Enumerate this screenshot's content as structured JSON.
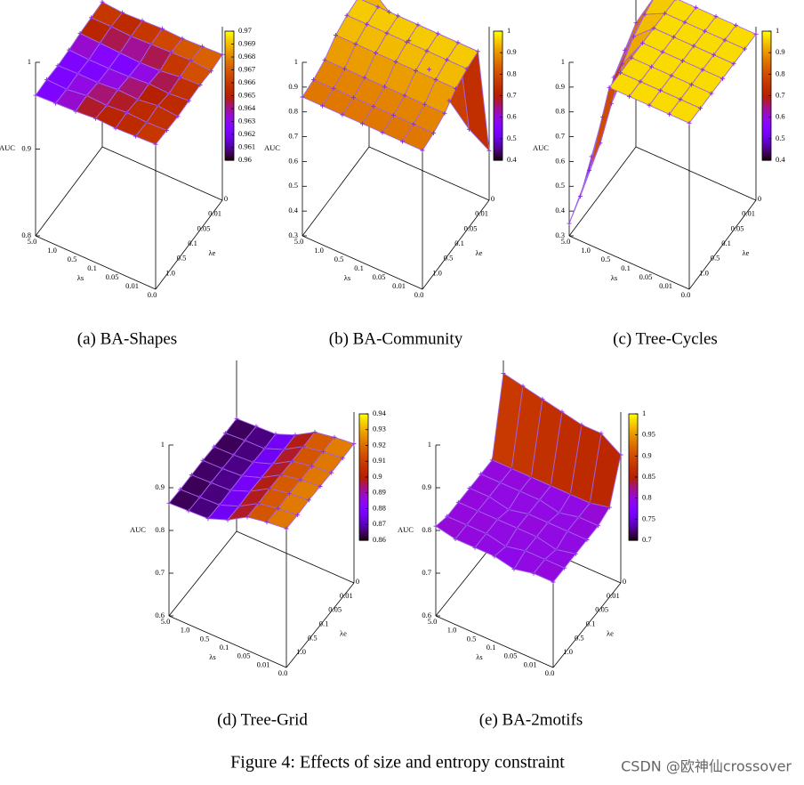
{
  "chart_data": [
    {
      "type": "surface",
      "caption": "(a) BA-Shapes",
      "zlabel": "AUC",
      "xlabel": "λs",
      "ylabel": "λe",
      "xcategories": [
        "5.0",
        "1.0",
        "0.5",
        "0.1",
        "0.05",
        "0.01",
        "0.0"
      ],
      "ycategories": [
        null,
        "1.0",
        "0.5",
        "0.1",
        "0.05",
        "0.01",
        "0"
      ],
      "z": [
        [
          0.962,
          0.963,
          0.962,
          0.963,
          0.965,
          0.966,
          0.967
        ],
        [
          0.963,
          0.962,
          0.963,
          0.962,
          0.964,
          0.966,
          0.965
        ],
        [
          0.964,
          0.965,
          0.963,
          0.962,
          0.963,
          0.965,
          0.966
        ],
        [
          0.966,
          0.964,
          0.965,
          0.963,
          0.962,
          0.966,
          0.967
        ],
        [
          0.965,
          0.966,
          0.964,
          0.965,
          0.963,
          0.967,
          0.966
        ],
        [
          0.966,
          0.965,
          0.967,
          0.964,
          0.966,
          0.968,
          0.967
        ],
        [
          0.967,
          0.966,
          0.965,
          0.966,
          0.967,
          0.966,
          0.968
        ]
      ],
      "zlim": [
        0.8,
        1
      ],
      "zticks": [
        0.8,
        0.9,
        1
      ],
      "cblim": [
        0.96,
        0.97
      ],
      "cbticks": [
        0.96,
        0.961,
        0.962,
        0.963,
        0.964,
        0.965,
        0.966,
        0.967,
        0.968,
        0.969,
        0.97
      ],
      "colormap": "gnuplot",
      "line_color": "#a064e6"
    },
    {
      "type": "surface",
      "caption": "(b) BA-Community",
      "zlabel": "AUC",
      "xlabel": "λs",
      "ylabel": "λe",
      "xcategories": [
        "5.0",
        "1.0",
        "0.5",
        "0.1",
        "0.05",
        "0.01",
        "0.0"
      ],
      "ycategories": [
        null,
        "1.0",
        "0.5",
        "0.1",
        "0.05",
        "0.01",
        "0"
      ],
      "z": [
        [
          0.86,
          0.87,
          0.89,
          0.93,
          0.95,
          0.96,
          0.95
        ],
        [
          0.86,
          0.87,
          0.89,
          0.93,
          0.95,
          0.96,
          0.88
        ],
        [
          0.86,
          0.87,
          0.89,
          0.93,
          0.95,
          0.96,
          0.8
        ],
        [
          0.86,
          0.87,
          0.89,
          0.93,
          0.95,
          0.96,
          0.72
        ],
        [
          0.86,
          0.87,
          0.89,
          0.93,
          0.95,
          0.96,
          0.63
        ],
        [
          0.86,
          0.87,
          0.89,
          0.93,
          0.95,
          0.96,
          0.55
        ],
        [
          0.86,
          0.87,
          0.89,
          0.93,
          0.95,
          0.96,
          0.5
        ]
      ],
      "zlim": [
        0.3,
        1
      ],
      "zticks": [
        0.3,
        0.4,
        0.5,
        0.6,
        0.7,
        0.8,
        0.9,
        1
      ],
      "cblim": [
        0.4,
        1
      ],
      "cbticks": [
        0.4,
        0.5,
        0.6,
        0.7,
        0.8,
        0.9,
        1
      ],
      "colormap": "gnuplot",
      "line_color": "#a064e6"
    },
    {
      "type": "surface",
      "caption": "(c) Tree-Cycles",
      "zlabel": "AUC",
      "xlabel": "λs",
      "ylabel": "λe",
      "xcategories": [
        "5.0",
        "1.0",
        "0.5",
        "0.1",
        "0.05",
        "0.01",
        "0.0"
      ],
      "ycategories": [
        null,
        "1.0",
        "0.5",
        "0.1",
        "0.05",
        "0.01",
        "0"
      ],
      "z": [
        [
          0.35,
          0.4,
          0.5,
          0.6,
          0.7,
          0.75,
          0.8
        ],
        [
          0.6,
          0.65,
          0.75,
          0.85,
          0.9,
          0.93,
          0.95
        ],
        [
          0.97,
          0.97,
          0.97,
          0.97,
          0.97,
          0.97,
          0.97
        ],
        [
          0.97,
          0.97,
          0.97,
          0.97,
          0.97,
          0.97,
          0.97
        ],
        [
          0.97,
          0.97,
          0.97,
          0.97,
          0.97,
          0.97,
          0.97
        ],
        [
          0.97,
          0.97,
          0.97,
          0.97,
          0.97,
          0.97,
          0.97
        ],
        [
          0.97,
          0.97,
          0.97,
          0.97,
          0.97,
          0.97,
          0.97
        ]
      ],
      "zlim": [
        0.3,
        1
      ],
      "zticks": [
        0.3,
        0.4,
        0.5,
        0.6,
        0.7,
        0.8,
        0.9,
        1
      ],
      "cblim": [
        0.4,
        1
      ],
      "cbticks": [
        0.4,
        0.5,
        0.6,
        0.7,
        0.8,
        0.9,
        1
      ],
      "colormap": "gnuplot",
      "line_color": "#a064e6"
    },
    {
      "type": "surface",
      "caption": "(d) Tree-Grid",
      "zlabel": "AUC",
      "xlabel": "λs",
      "ylabel": "λe",
      "xcategories": [
        "5.0",
        "1.0",
        "0.5",
        "0.1",
        "0.05",
        "0.01",
        "0.0"
      ],
      "ycategories": [
        null,
        "1.0",
        "0.5",
        "0.1",
        "0.05",
        "0.01",
        "0"
      ],
      "z": [
        [
          0.864,
          0.863,
          0.864,
          0.865,
          0.864,
          0.863,
          0.864
        ],
        [
          0.866,
          0.865,
          0.866,
          0.866,
          0.865,
          0.866,
          0.866
        ],
        [
          0.868,
          0.867,
          0.868,
          0.869,
          0.868,
          0.867,
          0.868
        ],
        [
          0.885,
          0.884,
          0.886,
          0.885,
          0.884,
          0.885,
          0.886
        ],
        [
          0.912,
          0.911,
          0.913,
          0.912,
          0.911,
          0.912,
          0.913
        ],
        [
          0.92,
          0.919,
          0.921,
          0.92,
          0.919,
          0.92,
          0.921
        ],
        [
          0.925,
          0.924,
          0.926,
          0.925,
          0.924,
          0.925,
          0.926
        ]
      ],
      "zlim": [
        0.6,
        1
      ],
      "zticks": [
        0.6,
        0.7,
        0.8,
        0.9,
        1
      ],
      "cblim": [
        0.86,
        0.94
      ],
      "cbticks": [
        0.86,
        0.87,
        0.88,
        0.89,
        0.9,
        0.91,
        0.92,
        0.93,
        0.94
      ],
      "colormap": "gnuplot",
      "line_color": "#a064e6"
    },
    {
      "type": "surface",
      "caption": "(e) BA-2motifs",
      "zlabel": "AUC",
      "xlabel": "λs",
      "ylabel": "λe",
      "xcategories": [
        "5.0",
        "1.0",
        "0.5",
        "0.1",
        "0.05",
        "0.01",
        "0.0"
      ],
      "ycategories": [
        null,
        "1.0",
        "0.5",
        "0.1",
        "0.05",
        "0.01",
        "0"
      ],
      "z": [
        [
          0.81,
          0.8,
          0.8,
          0.8,
          0.8,
          0.8,
          0.97
        ],
        [
          0.8,
          0.8,
          0.8,
          0.8,
          0.8,
          0.8,
          0.96
        ],
        [
          0.8,
          0.8,
          0.8,
          0.79,
          0.8,
          0.8,
          0.95
        ],
        [
          0.8,
          0.79,
          0.8,
          0.8,
          0.8,
          0.8,
          0.94
        ],
        [
          0.79,
          0.8,
          0.8,
          0.8,
          0.79,
          0.8,
          0.93
        ],
        [
          0.8,
          0.8,
          0.79,
          0.8,
          0.8,
          0.8,
          0.93
        ],
        [
          0.8,
          0.8,
          0.8,
          0.8,
          0.8,
          0.81,
          0.9
        ]
      ],
      "zlim": [
        0.6,
        1
      ],
      "zticks": [
        0.6,
        0.7,
        0.8,
        0.9,
        1
      ],
      "cblim": [
        0.7,
        1
      ],
      "cbticks": [
        0.7,
        0.75,
        0.8,
        0.85,
        0.9,
        0.95,
        1
      ],
      "colormap": "gnuplot",
      "line_color": "#a064e6"
    }
  ],
  "figure_caption": "Figure 4: Effects of size and entropy constraint",
  "watermark": "CSDN @欧神仙crossover"
}
